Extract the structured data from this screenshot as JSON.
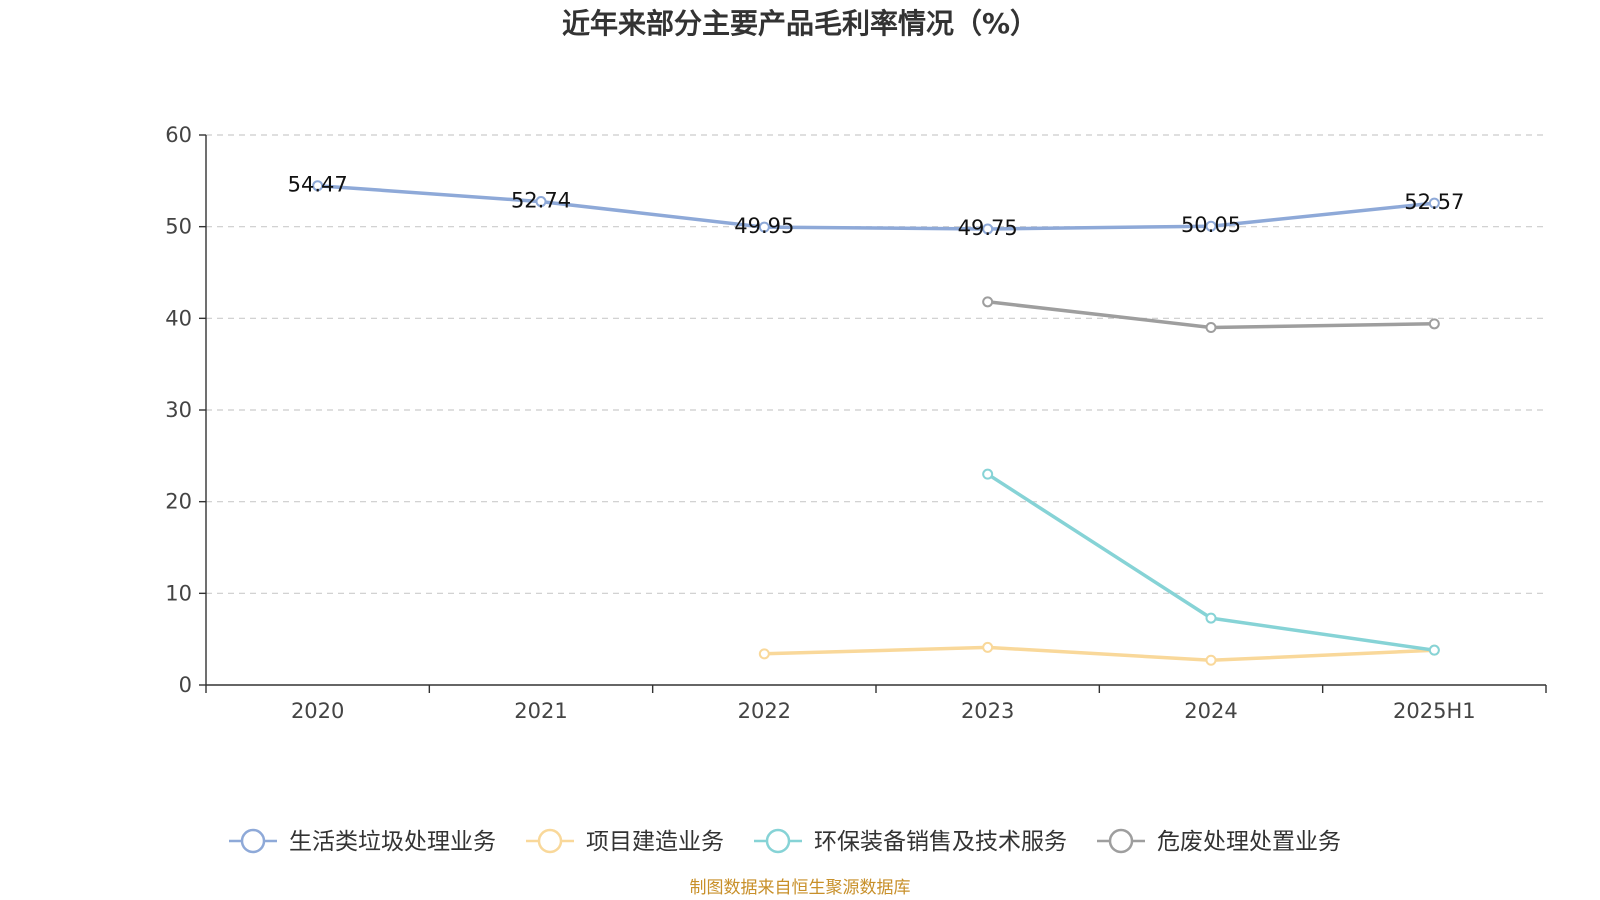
{
  "chart_data": {
    "type": "line",
    "title": "近年来部分主要产品毛利率情况（%）",
    "categories": [
      "2020",
      "2021",
      "2022",
      "2023",
      "2024",
      "2025H1"
    ],
    "ylim": [
      0,
      60
    ],
    "yticks": [
      0,
      10,
      20,
      30,
      40,
      50,
      60
    ],
    "grid": true,
    "legend_position": "bottom",
    "series": [
      {
        "name": "生活类垃圾处理业务",
        "color": "#8ea9d8",
        "values": [
          54.47,
          52.74,
          49.95,
          49.75,
          50.05,
          52.57
        ],
        "show_labels": true
      },
      {
        "name": "项目建造业务",
        "color": "#f9d89a",
        "values": [
          null,
          null,
          3.4,
          4.1,
          2.7,
          3.8
        ],
        "show_labels": false
      },
      {
        "name": "环保装备销售及技术服务",
        "color": "#86d3d6",
        "values": [
          null,
          null,
          null,
          23.0,
          7.3,
          3.8
        ],
        "show_labels": false
      },
      {
        "name": "危废处理处置业务",
        "color": "#9e9e9e",
        "values": [
          null,
          null,
          null,
          41.8,
          39.0,
          39.4
        ],
        "show_labels": false
      }
    ]
  },
  "source": "制图数据来自恒生聚源数据库"
}
